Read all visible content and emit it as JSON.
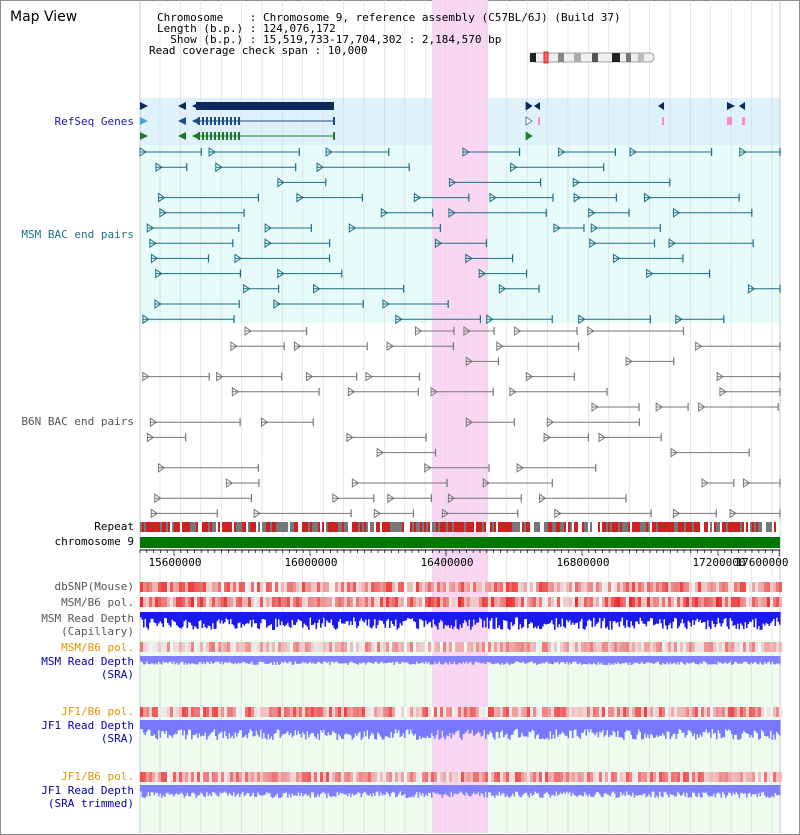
{
  "page_title": "Map View",
  "info": {
    "chromosome_line": "Chromosome    : Chromosome 9, reference assembly (C57BL/6J) (Build 37)",
    "length_line": "Length (b.p.) : 124,076,172",
    "show_line": "  Show (b.p.) : 15,519,733-17,704,302 : 2,184,570 bp",
    "coverage_line": "Read coverage check span : 10,000"
  },
  "tracks": {
    "refseq": "RefSeq Genes",
    "msm_bac": "MSM BAC end pairs",
    "b6n_bac": "B6N BAC end pairs",
    "repeat": "Repeat",
    "chromosome": "chromosome 9",
    "dbsnp": "dbSNP(Mouse)",
    "msm_b6_pol_1": "MSM/B6 pol.",
    "msm_depth_cap_1": "MSM Read Depth",
    "msm_depth_cap_2": "(Capillary)",
    "msm_b6_pol_2": "MSM/B6 pol.",
    "msm_depth_sra_1": "MSM Read Depth",
    "msm_depth_sra_2": "(SRA)",
    "jf1_b6_pol_1": "JF1/B6 pol.",
    "jf1_depth_sra_1": "JF1 Read Depth",
    "jf1_depth_sra_2": "(SRA)",
    "jf1_b6_pol_2": "JF1/B6 pol.",
    "jf1_depth_trim_1": "JF1 Read Depth",
    "jf1_depth_trim_2": "(SRA trimmed)"
  },
  "axis_ticks": [
    "15600000",
    "16000000",
    "16400000",
    "16800000",
    "17200000",
    "17600000"
  ],
  "colors": {
    "refseq_bg": "#dff1fb",
    "msm_bg": "#e8fbfb",
    "highlight": "#f9d7f2",
    "chromosome_bar": "#007700",
    "teal_feature": "#1d6f84",
    "grey_feature": "#777777",
    "depth_capillary": "#1a1aee",
    "depth_sra": "#7777ff",
    "pol_red": "#ee3333"
  }
}
